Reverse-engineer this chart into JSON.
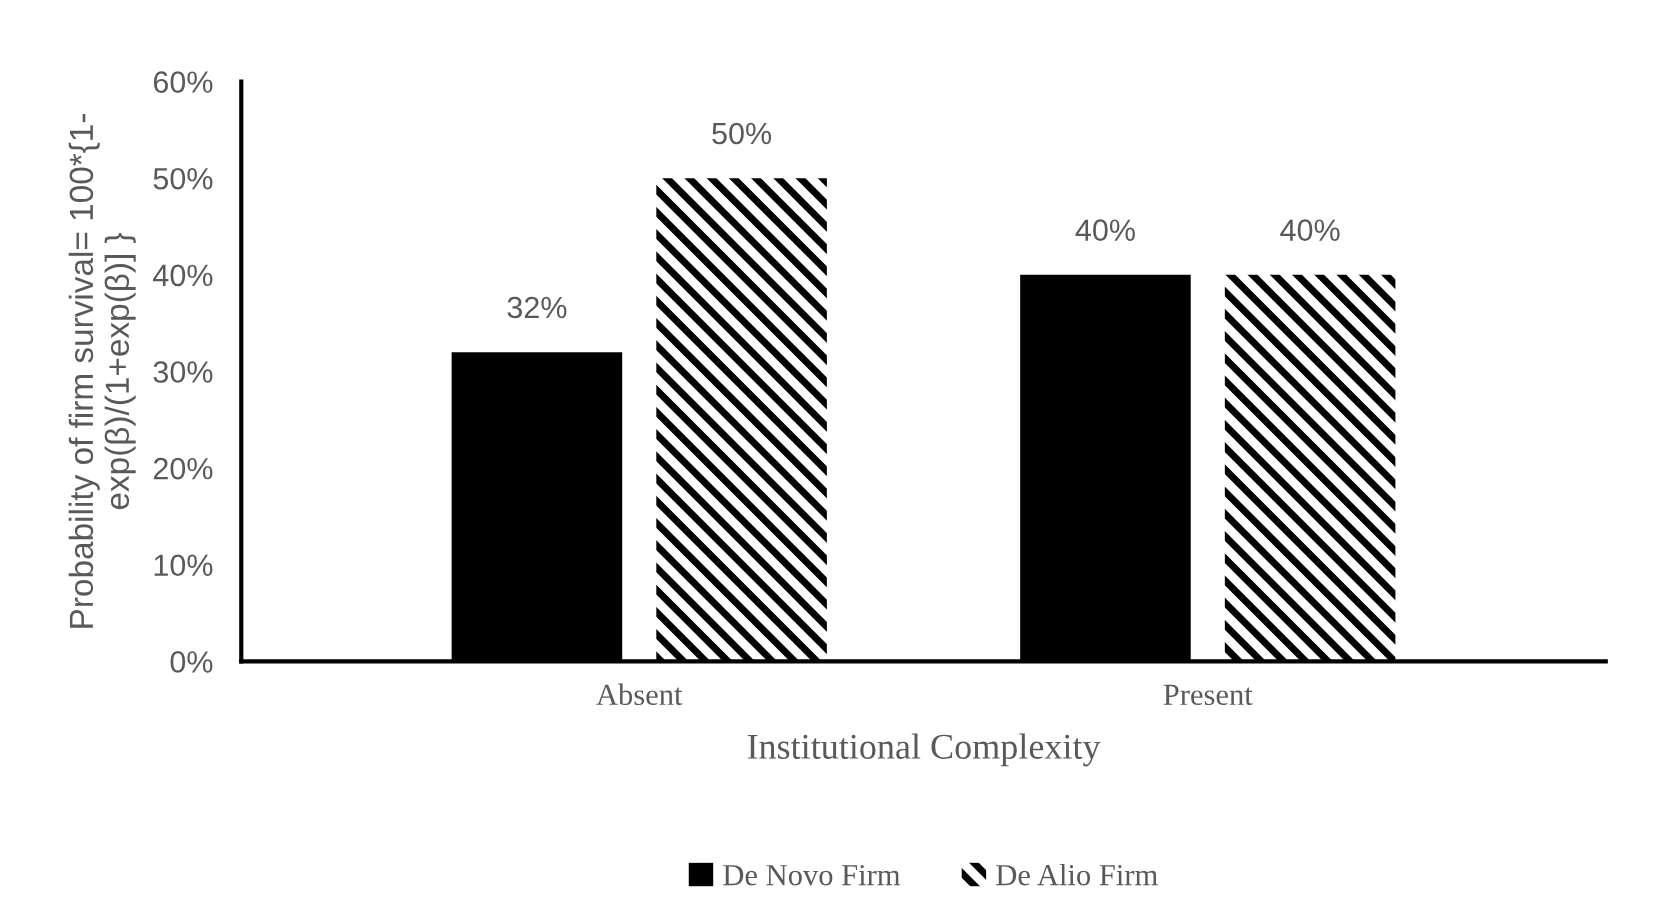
{
  "chart_data": {
    "type": "bar",
    "xlabel": "Institutional Complexity",
    "ylabel": "Probability of firm survival= 100*{1-\nexp(β)/(1+exp(β)] }",
    "categories": [
      "Absent",
      "Present"
    ],
    "series": [
      {
        "name": "De Novo Firm",
        "color": "#000000",
        "values": [
          32,
          40
        ],
        "value_labels": [
          "32%",
          "40%"
        ]
      },
      {
        "name": "De Alio Firm",
        "color": "#000000",
        "values": [
          50,
          40
        ],
        "value_labels": [
          "50%",
          "40%"
        ]
      }
    ],
    "ylim": [
      0,
      60
    ],
    "yticks": [
      {
        "value": 0,
        "label": "0%"
      },
      {
        "value": 10,
        "label": "10%"
      },
      {
        "value": 20,
        "label": "20%"
      },
      {
        "value": 30,
        "label": "30%"
      },
      {
        "value": 40,
        "label": "40%"
      },
      {
        "value": 50,
        "label": "50%"
      },
      {
        "value": 60,
        "label": "60%"
      }
    ],
    "grid": false,
    "legend": "bottom"
  }
}
